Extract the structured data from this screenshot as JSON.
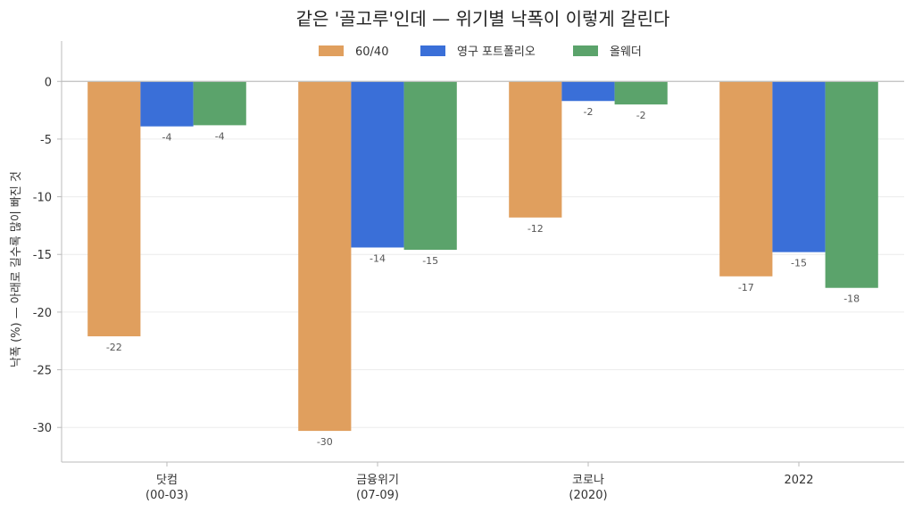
{
  "chart_data": {
    "type": "bar",
    "title": "같은 '골고루'인데 — 위기별 낙폭이 이렇게 갈린다",
    "xlabel": "",
    "ylabel": "낙폭 (%) — 아래로 길수록 많이 빠진 것",
    "categories": [
      [
        "닷컴",
        "(00-03)"
      ],
      [
        "금융위기",
        "(07-09)"
      ],
      [
        "코로나",
        "(2020)"
      ],
      [
        "2022"
      ]
    ],
    "series": [
      {
        "name": "60/40",
        "color": "#E09F5E",
        "values": [
          -22.1,
          -30.3,
          -11.8,
          -16.9
        ],
        "labels": [
          "-22",
          "-30",
          "-12",
          "-17"
        ]
      },
      {
        "name": "영구 포트폴리오",
        "color": "#3A6FD8",
        "values": [
          -3.9,
          -14.4,
          -1.7,
          -14.8
        ],
        "labels": [
          "-4",
          "-14",
          "-2",
          "-15"
        ]
      },
      {
        "name": "올웨더",
        "color": "#5BA36B",
        "values": [
          -3.8,
          -14.6,
          -2.0,
          -17.9
        ],
        "labels": [
          "-4",
          "-15",
          "-2",
          "-18"
        ]
      }
    ],
    "ylim": [
      -33,
      3.5
    ],
    "yticks": [
      0,
      -5,
      -10,
      -15,
      -20,
      -25,
      -30
    ],
    "grid": true,
    "legend_position": "top-center"
  }
}
